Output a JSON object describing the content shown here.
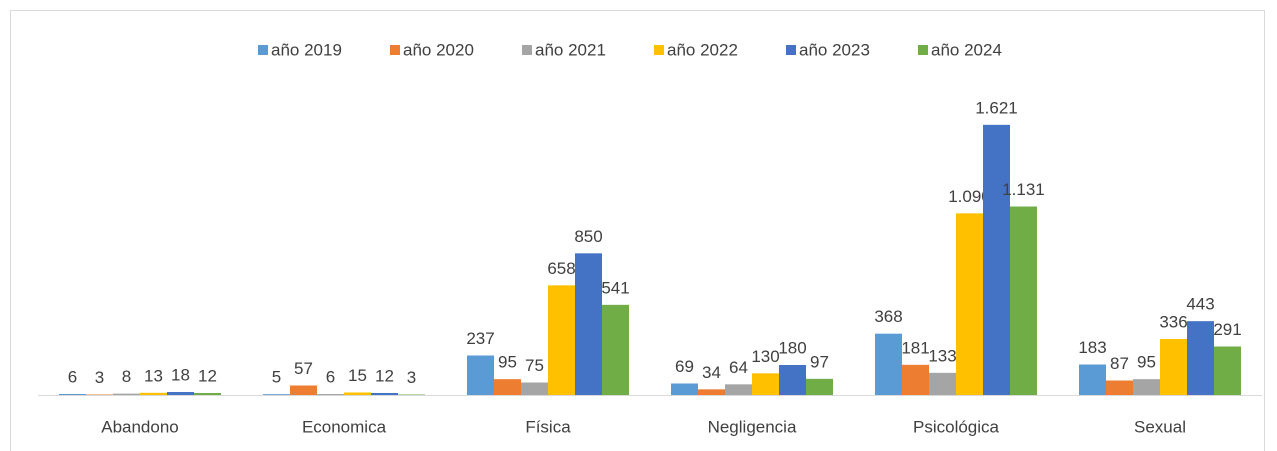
{
  "chart_data": {
    "type": "bar",
    "categories": [
      "Abandono",
      "Economica",
      "Física",
      "Negligencia",
      "Psicológica",
      "Sexual"
    ],
    "series": [
      {
        "name": "año 2019",
        "color": "#5b9bd5",
        "values": [
          6,
          5,
          237,
          69,
          368,
          183
        ]
      },
      {
        "name": "año 2020",
        "color": "#ed7d31",
        "values": [
          3,
          57,
          95,
          34,
          181,
          87
        ]
      },
      {
        "name": "año 2021",
        "color": "#a5a5a5",
        "values": [
          8,
          6,
          75,
          64,
          133,
          95
        ]
      },
      {
        "name": "año 2022",
        "color": "#ffc000",
        "values": [
          13,
          15,
          658,
          130,
          1090,
          336
        ],
        "value_labels": [
          "13",
          "15",
          "658",
          "130",
          "1.090",
          "336"
        ]
      },
      {
        "name": "año 2023",
        "color": "#4472c4",
        "values": [
          18,
          12,
          850,
          180,
          1621,
          443
        ],
        "value_labels": [
          "18",
          "12",
          "850",
          "180",
          "1.621",
          "443"
        ]
      },
      {
        "name": "año 2024",
        "color": "#70ad47",
        "values": [
          12,
          3,
          541,
          97,
          1131,
          291
        ],
        "value_labels": [
          "12",
          "3",
          "541",
          "97",
          "1.131",
          "291"
        ]
      }
    ],
    "ylim": [
      0,
      1800
    ],
    "legend": "top"
  }
}
